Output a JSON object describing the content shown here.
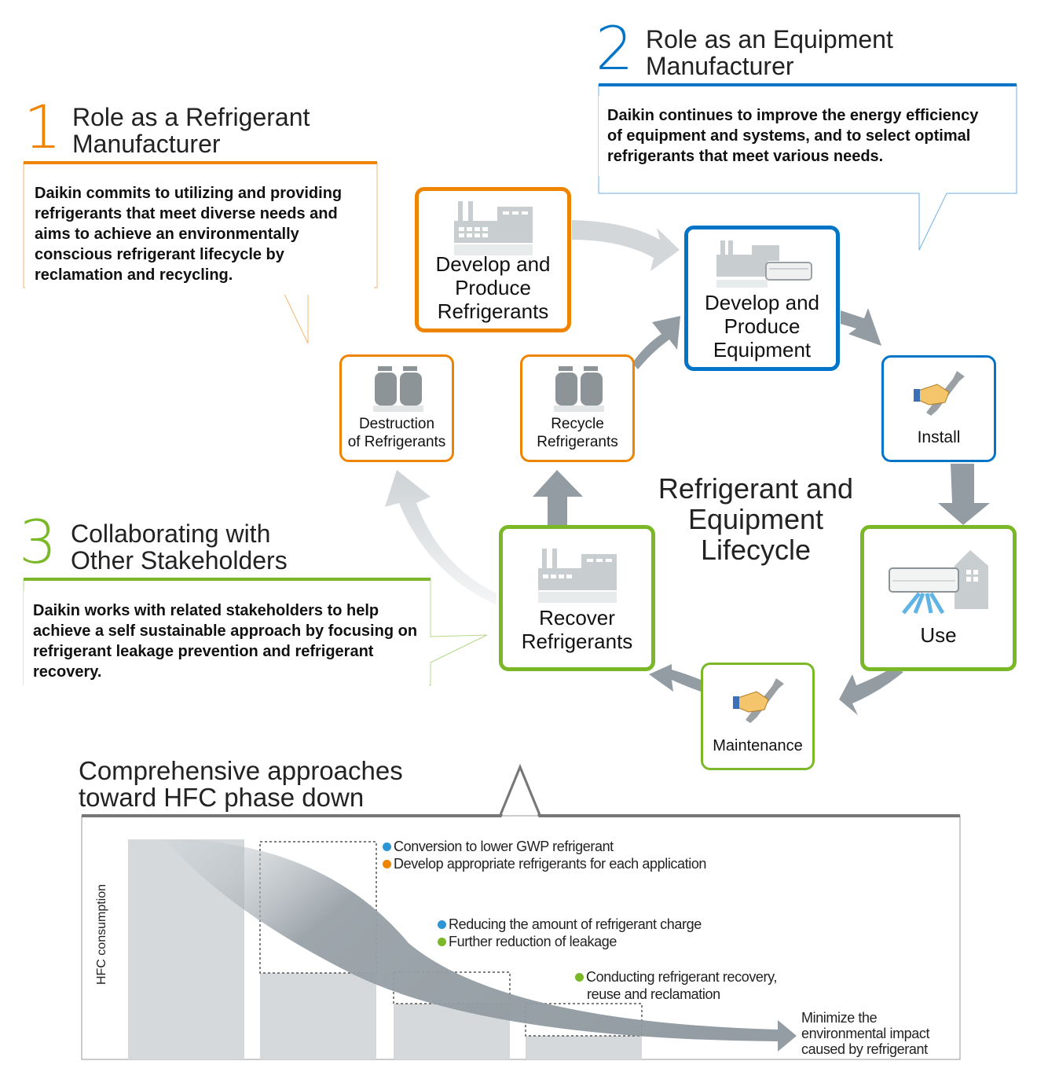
{
  "roles": [
    {
      "number": "1",
      "title_line1": "Role as a Refrigerant",
      "title_line2": "Manufacturer",
      "color": "#ee8400",
      "description": "Daikin commits to utilizing and providing refrigerants that meet diverse needs and aims to achieve an environmentally conscious refrigerant lifecycle by reclamation and recycling."
    },
    {
      "number": "2",
      "title_line1": "Role as an Equipment",
      "title_line2": "Manufacturer",
      "color": "#0075c8",
      "description": "Daikin continues to improve the energy efficiency of equipment and systems, and to select optimal refrigerants that meet various needs."
    },
    {
      "number": "3",
      "title_line1": "Collaborating with",
      "title_line2": "Other Stakeholders",
      "color": "#7ab828",
      "description": "Daikin works with related stakeholders to help achieve a self sustainable approach by focusing on refrigerant leakage prevention and refrigerant recovery."
    }
  ],
  "lifecycle": {
    "title_line1": "Refrigerant and",
    "title_line2": "Equipment",
    "title_line3": "Lifecycle",
    "steps": [
      {
        "line1": "Develop and",
        "line2": "Produce",
        "line3": "Refrigerants",
        "icon": "factory-icon",
        "color": "orange"
      },
      {
        "line1": "Develop and",
        "line2": "Produce",
        "line3": "Equipment",
        "icon": "factory-air-conditioner-icon",
        "color": "blue"
      },
      {
        "line1": "Install",
        "icon": "hand-wrench-icon",
        "color": "blue"
      },
      {
        "line1": "Use",
        "icon": "air-conditioner-house-icon",
        "color": "green"
      },
      {
        "line1": "Maintenance",
        "icon": "hand-wrench-icon",
        "color": "green"
      },
      {
        "line1": "Recover",
        "line2": "Refrigerants",
        "icon": "factory-icon",
        "color": "green"
      },
      {
        "line1": "Recycle",
        "line2": "Refrigerants",
        "icon": "gas-cylinders-icon",
        "color": "orange"
      },
      {
        "line1": "Destruction",
        "line2": "of Refrigerants",
        "icon": "gas-cylinders-icon",
        "color": "orange"
      }
    ]
  },
  "approaches": {
    "title_line1": "Comprehensive approaches",
    "title_line2": "toward HFC phase down",
    "ylabel": "HFC consumption",
    "notes": [
      {
        "text": "Conversion to lower GWP refrigerant",
        "dot": "#2b95d6"
      },
      {
        "text": "Develop appropriate refrigerants for each application",
        "dot": "#ee8400"
      },
      {
        "text": "Reducing the amount of refrigerant charge",
        "dot": "#2b95d6"
      },
      {
        "text": "Further reduction of leakage",
        "dot": "#7ab828"
      },
      {
        "text": "Conducting refrigerant recovery,",
        "text2": "reuse and reclamation",
        "dot": "#7ab828"
      }
    ],
    "goal_line1": "Minimize the",
    "goal_line2": "environmental impact",
    "goal_line3": "caused by refrigerant"
  }
}
